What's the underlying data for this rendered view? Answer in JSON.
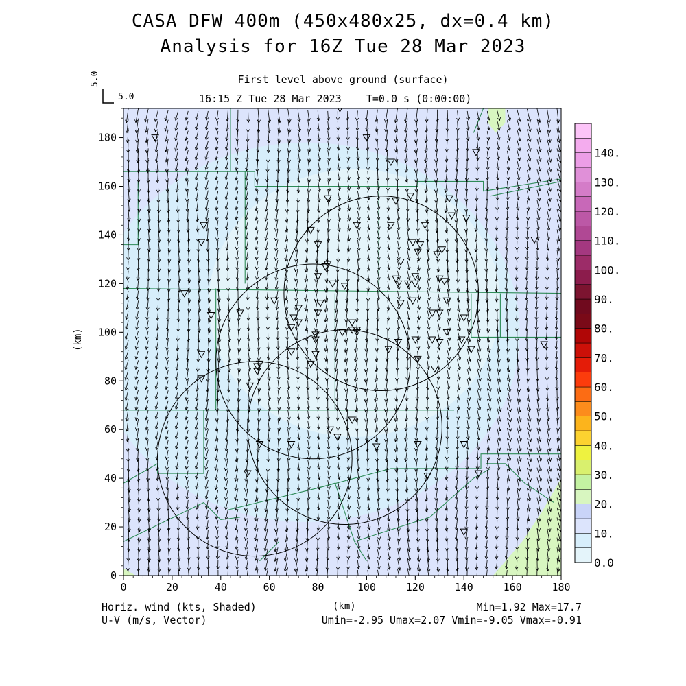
{
  "header": {
    "title_line1": "CASA DFW 400m (450x480x25, dx=0.4 km)",
    "title_line2": "Analysis for 16Z Tue 28 Mar 2023",
    "subtitle": "First level above ground (surface)",
    "time_label": "16:15 Z Tue 28 Mar 2023    T=0.0 s (0:00:00)",
    "ref_vector_label": "5.0",
    "ref_vector_scale": "5.0"
  },
  "footer": {
    "left_line1": "Horiz. wind (kts, Shaded)",
    "left_line2": "U-V (m/s, Vector)",
    "right_line1": "Min=1.92 Max=17.7",
    "right_line2": "Umin=-2.95 Umax=2.07 Vmin=-9.05 Vmax=-0.91"
  },
  "chart_data": {
    "type": "heatmap",
    "xlabel": "(km)",
    "ylabel": "(km)",
    "xlim": [
      0,
      180
    ],
    "ylim": [
      0,
      192
    ],
    "xticks": [
      0,
      20,
      40,
      60,
      80,
      100,
      120,
      140,
      160,
      180
    ],
    "yticks": [
      0,
      20,
      40,
      60,
      80,
      100,
      120,
      140,
      160,
      180
    ],
    "field_range": {
      "min": 1.92,
      "max": 17.7,
      "units": "kts"
    },
    "vector_range": {
      "umin": -2.95,
      "umax": 2.07,
      "vmin": -9.05,
      "vmax": -0.91,
      "units": "m/s"
    },
    "colorbar": {
      "labels": [
        "0.0",
        "10.",
        "20.",
        "30.",
        "40.",
        "50.",
        "60.",
        "70.",
        "80.",
        "90.",
        "100.",
        "110.",
        "120.",
        "130.",
        "140."
      ],
      "colors": [
        "#e4f4fa",
        "#d7eefb",
        "#dce4fc",
        "#c9d4f8",
        "#d8f6c0",
        "#c4f2a2",
        "#d9f06e",
        "#eef240",
        "#fcd230",
        "#fcb41c",
        "#fc8c1c",
        "#fc6c14",
        "#fc3c0c",
        "#e41c08",
        "#cc1008",
        "#b00606",
        "#7a0a18",
        "#700a1e",
        "#7c1430",
        "#8c1c4c",
        "#9c2c68",
        "#a43880",
        "#b04894",
        "#bc58a6",
        "#c868b8",
        "#d47cc8",
        "#e090d8",
        "#ec9ee6",
        "#f4acee",
        "#fcc4f8"
      ]
    },
    "radar_rings": [
      {
        "cx": 106,
        "cy": 116,
        "r": 40
      },
      {
        "cx": 78,
        "cy": 88,
        "r": 40
      },
      {
        "cx": 91,
        "cy": 61,
        "r": 40
      },
      {
        "cx": 54,
        "cy": 48,
        "r": 40
      }
    ],
    "stations": [
      [
        13,
        180
      ],
      [
        89,
        192
      ],
      [
        100,
        180
      ],
      [
        110,
        170
      ],
      [
        145,
        174
      ],
      [
        84,
        155
      ],
      [
        112,
        154
      ],
      [
        118,
        156
      ],
      [
        134,
        155
      ],
      [
        33,
        144
      ],
      [
        32,
        137
      ],
      [
        77,
        142
      ],
      [
        96,
        144
      ],
      [
        110,
        144
      ],
      [
        124,
        144
      ],
      [
        119,
        137
      ],
      [
        122,
        136
      ],
      [
        121,
        133
      ],
      [
        129,
        132
      ],
      [
        131,
        134
      ],
      [
        80,
        136
      ],
      [
        135,
        148
      ],
      [
        141,
        147
      ],
      [
        169,
        138
      ],
      [
        84,
        128
      ],
      [
        83,
        127
      ],
      [
        114,
        129
      ],
      [
        80,
        123
      ],
      [
        86,
        120
      ],
      [
        91,
        119
      ],
      [
        112,
        122
      ],
      [
        113,
        120
      ],
      [
        117,
        120
      ],
      [
        120,
        120
      ],
      [
        120,
        123
      ],
      [
        130,
        122
      ],
      [
        132,
        121
      ],
      [
        25,
        116
      ],
      [
        62,
        113
      ],
      [
        72,
        110
      ],
      [
        81,
        112
      ],
      [
        114,
        112
      ],
      [
        119,
        113
      ],
      [
        133,
        113
      ],
      [
        48,
        108
      ],
      [
        36,
        107
      ],
      [
        70,
        106
      ],
      [
        72,
        104
      ],
      [
        69,
        102
      ],
      [
        80,
        108
      ],
      [
        127,
        108
      ],
      [
        130,
        108
      ],
      [
        140,
        106
      ],
      [
        94,
        104
      ],
      [
        94,
        101
      ],
      [
        96,
        100
      ],
      [
        90,
        100
      ],
      [
        96,
        101
      ],
      [
        133,
        100
      ],
      [
        127,
        97
      ],
      [
        139,
        97
      ],
      [
        130,
        96
      ],
      [
        79,
        99
      ],
      [
        79,
        97
      ],
      [
        113,
        96
      ],
      [
        120,
        97
      ],
      [
        143,
        93
      ],
      [
        173,
        95
      ],
      [
        109,
        93
      ],
      [
        69,
        92
      ],
      [
        79,
        91
      ],
      [
        77,
        87
      ],
      [
        32,
        91
      ],
      [
        56,
        87
      ],
      [
        55,
        86
      ],
      [
        55,
        84
      ],
      [
        121,
        89
      ],
      [
        128,
        85
      ],
      [
        32,
        81
      ],
      [
        52,
        78
      ],
      [
        94,
        64
      ],
      [
        85,
        60
      ],
      [
        88,
        57
      ],
      [
        56,
        54
      ],
      [
        69,
        54
      ],
      [
        104,
        53
      ],
      [
        121,
        54
      ],
      [
        140,
        54
      ],
      [
        51,
        42
      ],
      [
        125,
        41
      ],
      [
        146,
        42
      ],
      [
        140,
        18
      ]
    ],
    "roads": [
      [
        [
          0,
          166
        ],
        [
          54,
          166
        ],
        [
          54,
          160
        ],
        [
          121,
          160
        ],
        [
          121,
          162
        ],
        [
          148,
          162
        ],
        [
          148,
          158
        ],
        [
          180,
          163
        ]
      ],
      [
        [
          0,
          118
        ],
        [
          180,
          116
        ]
      ],
      [
        [
          0,
          68
        ],
        [
          136,
          68
        ]
      ],
      [
        [
          44,
          192
        ],
        [
          44,
          166
        ]
      ],
      [
        [
          50,
          166
        ],
        [
          50,
          120
        ]
      ],
      [
        [
          38,
          118
        ],
        [
          38,
          68
        ]
      ],
      [
        [
          87,
          116
        ],
        [
          87,
          68
        ]
      ],
      [
        [
          105,
          116
        ],
        [
          105,
          162
        ]
      ],
      [
        [
          143,
          116
        ],
        [
          143,
          98
        ],
        [
          155,
          98
        ],
        [
          155,
          116
        ]
      ],
      [
        [
          155,
          98
        ],
        [
          180,
          98
        ]
      ],
      [
        [
          33,
          68
        ],
        [
          33,
          42
        ],
        [
          14,
          42
        ],
        [
          14,
          46
        ],
        [
          0,
          38
        ]
      ],
      [
        [
          0,
          14
        ],
        [
          33,
          30
        ],
        [
          40,
          23
        ],
        [
          48,
          24
        ]
      ],
      [
        [
          43,
          27
        ],
        [
          80,
          36
        ],
        [
          110,
          44
        ],
        [
          147,
          44
        ],
        [
          147,
          50
        ],
        [
          180,
          50
        ]
      ],
      [
        [
          80,
          36
        ],
        [
          87,
          38
        ],
        [
          95,
          14
        ],
        [
          126,
          24
        ],
        [
          144,
          40
        ],
        [
          151,
          44
        ]
      ],
      [
        [
          149,
          46
        ],
        [
          157,
          46
        ],
        [
          165,
          38
        ],
        [
          177,
          30
        ]
      ],
      [
        [
          0,
          136
        ],
        [
          6,
          136
        ],
        [
          6,
          162
        ]
      ],
      [
        [
          151,
          156
        ],
        [
          180,
          162
        ]
      ],
      [
        [
          144,
          182
        ],
        [
          148,
          192
        ]
      ],
      [
        [
          95,
          14
        ],
        [
          100,
          6
        ]
      ],
      [
        [
          56,
          6
        ],
        [
          64,
          14
        ]
      ]
    ],
    "grid": false,
    "colorbar_position": "right",
    "vectors": "down-pointing U-V wind arrows on a regular grid"
  }
}
